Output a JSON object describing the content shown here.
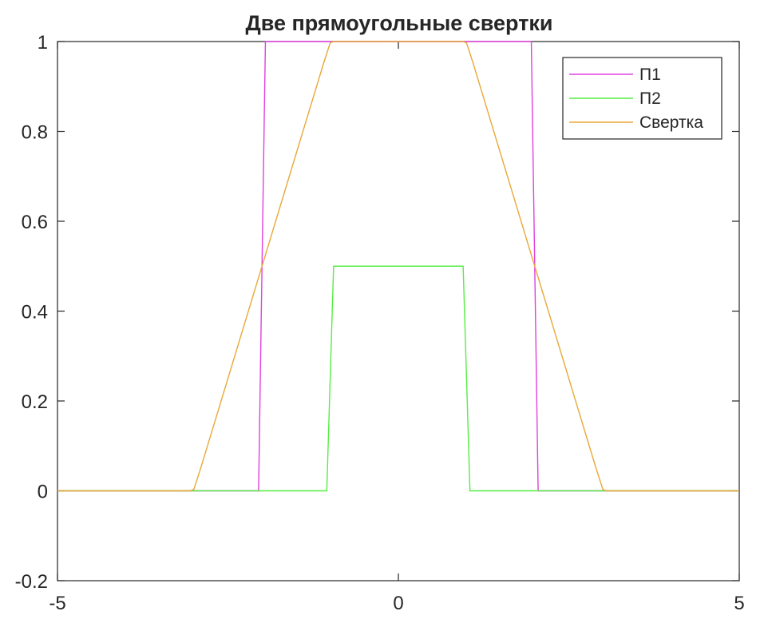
{
  "chart_data": {
    "type": "line",
    "title": "Две прямоугольные свертки",
    "xlabel": "",
    "ylabel": "",
    "xlim": [
      -5,
      5
    ],
    "ylim": [
      -0.2,
      1
    ],
    "xticks": [
      -5,
      0,
      5
    ],
    "xtick_labels": [
      "-5",
      "0",
      "5"
    ],
    "yticks": [
      -0.2,
      0,
      0.2,
      0.4,
      0.6,
      0.8,
      1
    ],
    "ytick_labels": [
      "-0.2",
      "0",
      "0.2",
      "0.4",
      "0.6",
      "0.8",
      "1"
    ],
    "grid": false,
    "legend_position": "top-right",
    "series": [
      {
        "name": "П1",
        "color": "#e040e0",
        "x": [
          -5,
          -2.05,
          -1.95,
          1.95,
          2.05,
          5
        ],
        "y": [
          0,
          0,
          1,
          1,
          0,
          0
        ]
      },
      {
        "name": "П2",
        "color": "#55ee44",
        "x": [
          -5,
          -1.05,
          -0.95,
          0.95,
          1.05,
          5
        ],
        "y": [
          0,
          0,
          0.5,
          0.5,
          0,
          0
        ]
      },
      {
        "name": "Свертка",
        "color": "#e8a838",
        "x": [
          -5,
          -3.05,
          -3.0,
          -2.9,
          -1.1,
          -1.0,
          -0.95,
          0.95,
          1.0,
          1.1,
          2.9,
          3.0,
          3.05,
          5
        ],
        "y": [
          0,
          0,
          0.003,
          0.05,
          0.95,
          0.997,
          1,
          1,
          0.997,
          0.95,
          0.05,
          0.003,
          0,
          0
        ]
      }
    ]
  }
}
